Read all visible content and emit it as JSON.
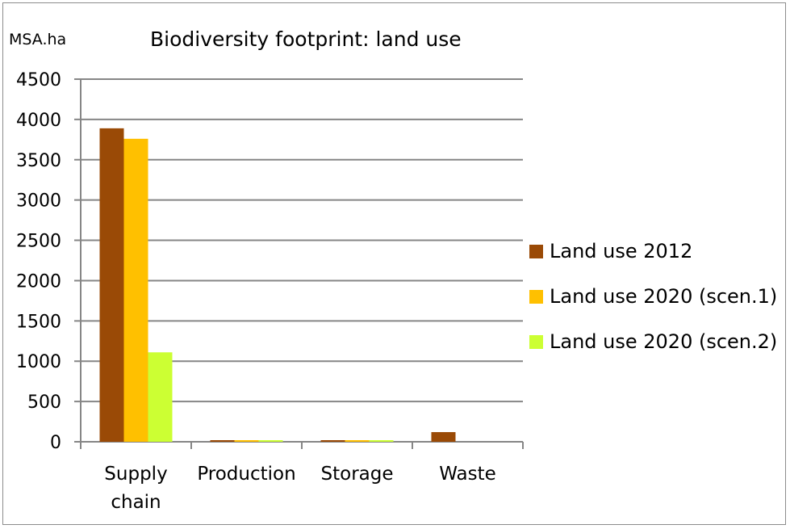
{
  "chart_data": {
    "type": "bar",
    "title": "Biodiversity footprint: land use",
    "ylabel": "MSA.ha",
    "xlabel": "",
    "categories": [
      "Supply chain",
      "Production",
      "Storage",
      "Waste"
    ],
    "category_lines": [
      [
        "Supply",
        "chain"
      ],
      [
        "Production"
      ],
      [
        "Storage"
      ],
      [
        "Waste"
      ]
    ],
    "series": [
      {
        "name": "Land use 2012",
        "color": "#9a4a06",
        "values": [
          3890,
          20,
          20,
          120
        ]
      },
      {
        "name": "Land use 2020 (scen.1)",
        "color": "#ffc000",
        "values": [
          3760,
          20,
          20,
          0
        ]
      },
      {
        "name": "Land use 2020 (scen.2)",
        "color": "#ccff33",
        "values": [
          1110,
          20,
          20,
          0
        ]
      }
    ],
    "ylim": [
      0,
      4500
    ],
    "yticks": [
      0,
      500,
      1000,
      1500,
      2000,
      2500,
      3000,
      3500,
      4000,
      4500
    ],
    "grid": true,
    "legend": "right"
  }
}
